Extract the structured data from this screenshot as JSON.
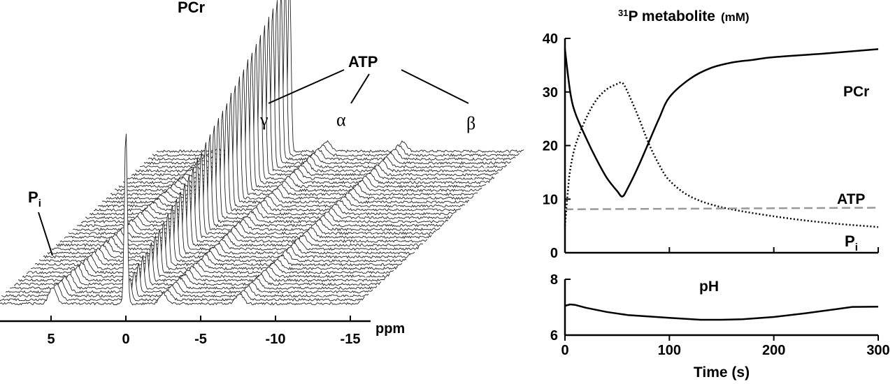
{
  "chart_data": [
    {
      "type": "line",
      "subtype": "stacked-spectra",
      "xlabel": "ppm",
      "x_ticks": [
        "5",
        "0",
        "-5",
        "-10",
        "-15"
      ],
      "xlim": [
        8,
        -17
      ],
      "peaks": [
        {
          "label": "Pi",
          "ppm": 4.9
        },
        {
          "label": "PCr",
          "ppm": 0.0
        },
        {
          "label": "γ",
          "ppm": -2.5
        },
        {
          "label": "α",
          "ppm": -7.6
        },
        {
          "label": "β",
          "ppm": -16.1
        }
      ],
      "annotations": {
        "pcr": "PCr",
        "atp": "ATP",
        "gamma": "γ",
        "alpha": "α",
        "beta": "β",
        "pi_main": "P",
        "pi_sub": "i"
      },
      "n_traces": 40
    },
    {
      "type": "line",
      "title_sup": "31",
      "title_main": "P metabolite",
      "title_unit": "(mM)",
      "xlim": [
        0,
        300
      ],
      "ylim": [
        0,
        40
      ],
      "y_ticks": [
        "0",
        "10",
        "20",
        "30",
        "40"
      ],
      "x_ticks": [
        0,
        100,
        200,
        300
      ],
      "series": [
        {
          "name": "PCr",
          "style": "solid",
          "x": [
            0,
            5,
            10,
            20,
            30,
            40,
            50,
            55,
            60,
            70,
            80,
            90,
            100,
            120,
            140,
            160,
            180,
            200,
            250,
            300
          ],
          "y": [
            38,
            30,
            26,
            21.5,
            17.5,
            14,
            11.5,
            10.5,
            12,
            16,
            20.5,
            25,
            29,
            32.5,
            34.5,
            35.5,
            36,
            36.5,
            37.2,
            38
          ]
        },
        {
          "name": "Pi",
          "name_main": "P",
          "name_sub": "i",
          "style": "dotted",
          "x": [
            0,
            3,
            5,
            10,
            20,
            30,
            40,
            50,
            55,
            60,
            70,
            80,
            90,
            100,
            120,
            150,
            200,
            250,
            300
          ],
          "y": [
            5,
            12,
            15.5,
            20,
            25,
            28.5,
            30.5,
            31.5,
            31.7,
            30,
            25.5,
            20.5,
            16.5,
            13.5,
            10.5,
            8.5,
            6.8,
            5.6,
            4.8
          ]
        },
        {
          "name": "ATP",
          "style": "dashed",
          "color": "#999999",
          "x": [
            0,
            300
          ],
          "y": [
            8.1,
            8.4
          ]
        }
      ]
    },
    {
      "type": "line",
      "title": "pH",
      "xlabel": "Time (s)",
      "xlim": [
        0,
        300
      ],
      "ylim": [
        6,
        8
      ],
      "y_ticks": [
        "6",
        "8"
      ],
      "x_ticks": [
        "0",
        "100",
        "200",
        "300"
      ],
      "series": [
        {
          "name": "pH",
          "style": "solid",
          "x": [
            0,
            5,
            10,
            20,
            40,
            60,
            80,
            100,
            130,
            150,
            170,
            200,
            230,
            260,
            275,
            300
          ],
          "y": [
            7.05,
            7.1,
            7.08,
            6.98,
            6.83,
            6.72,
            6.67,
            6.62,
            6.55,
            6.55,
            6.57,
            6.65,
            6.78,
            6.93,
            7.01,
            7.02
          ]
        }
      ]
    }
  ]
}
